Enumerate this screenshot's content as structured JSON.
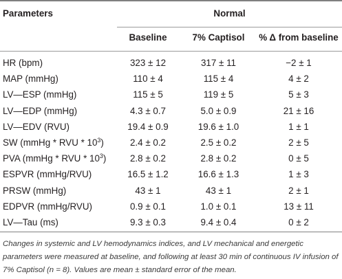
{
  "header": {
    "parameters": "Parameters",
    "group": "Normal",
    "col_baseline": "Baseline",
    "col_captisol": "7% Captisol",
    "col_change": "% Δ from baseline"
  },
  "rows": [
    {
      "param": "HR (bpm)",
      "sup": "",
      "param_end": "",
      "baseline": "323 ± 12",
      "captisol": "317 ± 11",
      "change": "−2 ± 1"
    },
    {
      "param": "MAP (mmHg)",
      "sup": "",
      "param_end": "",
      "baseline": "110 ± 4",
      "captisol": "115 ± 4",
      "change": "4 ± 2"
    },
    {
      "param": "LV—ESP (mmHg)",
      "sup": "",
      "param_end": "",
      "baseline": "115 ± 5",
      "captisol": "119 ± 5",
      "change": "5 ± 3"
    },
    {
      "param": "LV—EDP (mmHg)",
      "sup": "",
      "param_end": "",
      "baseline": "4.3 ± 0.7",
      "captisol": "5.0 ± 0.9",
      "change": "21 ± 16"
    },
    {
      "param": "LV—EDV (RVU)",
      "sup": "",
      "param_end": "",
      "baseline": "19.4 ± 0.9",
      "captisol": "19.6 ± 1.0",
      "change": "1 ± 1"
    },
    {
      "param": "SW (mmHg * RVU * 10",
      "sup": "3",
      "param_end": ")",
      "baseline": "2.4 ± 0.2",
      "captisol": "2.5 ± 0.2",
      "change": "2 ± 5"
    },
    {
      "param": "PVA (mmHg * RVU * 10",
      "sup": "3",
      "param_end": ")",
      "baseline": "2.8 ± 0.2",
      "captisol": "2.8 ± 0.2",
      "change": "0 ± 5"
    },
    {
      "param": "ESPVR (mmHg/RVU)",
      "sup": "",
      "param_end": "",
      "baseline": "16.5 ± 1.2",
      "captisol": "16.6 ± 1.3",
      "change": "1 ± 3"
    },
    {
      "param": "PRSW (mmHg)",
      "sup": "",
      "param_end": "",
      "baseline": "43 ± 1",
      "captisol": "43 ± 1",
      "change": "2 ± 1"
    },
    {
      "param": "EDPVR (mmHg/RVU)",
      "sup": "",
      "param_end": "",
      "baseline": "0.9 ± 0.1",
      "captisol": "1.0 ± 0.1",
      "change": "13 ± 11"
    },
    {
      "param": "LV—Tau (ms)",
      "sup": "",
      "param_end": "",
      "baseline": "9.3 ± 0.3",
      "captisol": "9.4 ± 0.4",
      "change": "0 ± 2"
    }
  ],
  "caption": "Changes in systemic and LV hemodynamics indices, and LV mechanical and energetic parameters were measured at baseline, and following at least 30 min of continuous IV infusion of 7% Captisol (n = 8). Values are mean ± standard error of the mean."
}
